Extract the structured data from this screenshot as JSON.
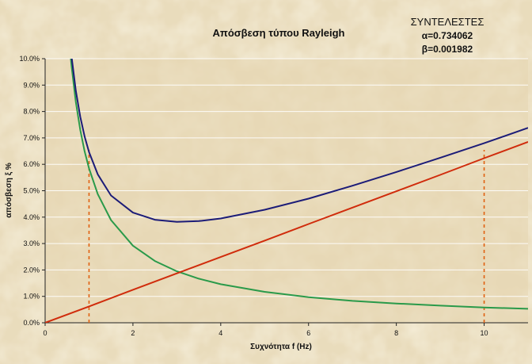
{
  "chart_data": {
    "type": "line",
    "title": "Απόσβεση τύπου Rayleigh",
    "coefficients": {
      "heading": "ΣΥΝΤΕΛΕΣΤΕΣ",
      "alpha_label": "α=0.734062",
      "beta_label": "β=0.001982"
    },
    "xlabel": "Συχνότητα f (Hz)",
    "ylabel": "απόσβεση ξ %",
    "xlim": [
      0,
      11
    ],
    "ylim": [
      0,
      10
    ],
    "x_ticks": [
      0,
      2,
      4,
      6,
      8,
      10
    ],
    "y_ticks": [
      "0.0%",
      "1.0%",
      "2.0%",
      "3.0%",
      "4.0%",
      "5.0%",
      "6.0%",
      "7.0%",
      "8.0%",
      "9.0%",
      "10.0%"
    ],
    "grid": true,
    "legend": "none",
    "series": [
      {
        "color": "#2a9a4a",
        "x": [
          0.55,
          0.6,
          0.7,
          0.8,
          0.9,
          1.0,
          1.2,
          1.5,
          2.0,
          2.5,
          3.0,
          3.5,
          4.0,
          5.0,
          6.0,
          7.0,
          8.0,
          9.0,
          10.0,
          11.0
        ],
        "y": [
          10.62,
          9.74,
          8.35,
          7.3,
          6.49,
          5.84,
          4.87,
          3.89,
          2.92,
          2.34,
          1.95,
          1.67,
          1.46,
          1.17,
          0.97,
          0.83,
          0.73,
          0.65,
          0.58,
          0.53
        ]
      },
      {
        "color": "#d02c0c",
        "x": [
          0,
          1,
          2,
          3,
          4,
          5,
          6,
          7,
          8,
          9,
          10,
          11
        ],
        "y": [
          0,
          0.62,
          1.25,
          1.87,
          2.49,
          3.11,
          3.74,
          4.36,
          4.98,
          5.6,
          6.23,
          6.85
        ]
      },
      {
        "color": "#1c1c78",
        "x": [
          0.6,
          0.7,
          0.8,
          0.9,
          1.0,
          1.2,
          1.5,
          2.0,
          2.5,
          3.0,
          3.5,
          4.0,
          5.0,
          6.0,
          7.0,
          8.0,
          9.0,
          10.0,
          11.0
        ],
        "y": [
          10.1,
          8.78,
          7.8,
          7.05,
          6.46,
          5.62,
          4.82,
          4.17,
          3.9,
          3.82,
          3.85,
          3.95,
          4.28,
          4.7,
          5.19,
          5.71,
          6.25,
          6.8,
          7.38
        ]
      }
    ],
    "reference_lines": {
      "color": "#e06010",
      "style": "dashed",
      "x": [
        1,
        10
      ]
    }
  }
}
